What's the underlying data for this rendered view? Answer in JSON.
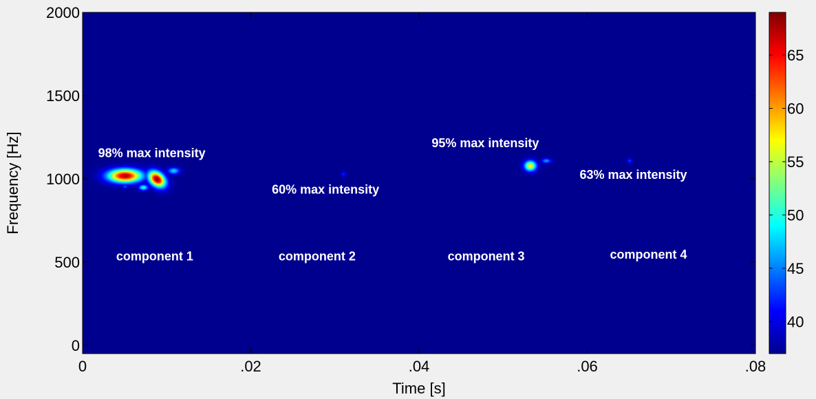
{
  "chart_data": {
    "type": "heatmap",
    "title": "",
    "xlabel": "Time [s]",
    "ylabel": "Frequency [Hz]",
    "xlim": [
      0,
      0.08
    ],
    "ylim": [
      -50,
      2000
    ],
    "x_ticks": [
      {
        "value": 0,
        "label": "0"
      },
      {
        "value": 0.02,
        "label": ".02"
      },
      {
        "value": 0.04,
        "label": ".04"
      },
      {
        "value": 0.06,
        "label": ".06"
      },
      {
        "value": 0.08,
        "label": ".08"
      }
    ],
    "y_ticks": [
      {
        "value": 0,
        "label": "0"
      },
      {
        "value": 500,
        "label": "500"
      },
      {
        "value": 1000,
        "label": "1000"
      },
      {
        "value": 1500,
        "label": "1500"
      },
      {
        "value": 2000,
        "label": "2000"
      }
    ],
    "colorbar": {
      "range": [
        37,
        69
      ],
      "ticks": [
        {
          "value": 40,
          "label": "40"
        },
        {
          "value": 45,
          "label": "45"
        },
        {
          "value": 50,
          "label": "50"
        },
        {
          "value": 55,
          "label": "55"
        },
        {
          "value": 60,
          "label": "60"
        },
        {
          "value": 65,
          "label": "65"
        }
      ],
      "colormap": "jet"
    },
    "background_value": 37,
    "blobs": [
      {
        "x": 0.0088,
        "y": 1000,
        "sx": 0.0008,
        "sy": 28,
        "peak": 68.5,
        "angle_deg": -40
      },
      {
        "x": 0.0072,
        "y": 950,
        "sx": 0.0004,
        "sy": 12,
        "peak": 50
      },
      {
        "x": 0.0108,
        "y": 1050,
        "sx": 0.0005,
        "sy": 14,
        "peak": 48
      },
      {
        "x": 0.005,
        "y": 955,
        "sx": 0.0002,
        "sy": 8,
        "peak": 44
      },
      {
        "x": 0.005,
        "y": 1020,
        "sx": 0.0014,
        "sy": 28,
        "peak": 67.5
      },
      {
        "x": 0.0532,
        "y": 1080,
        "sx": 0.0005,
        "sy": 22,
        "peak": 57
      },
      {
        "x": 0.0551,
        "y": 1110,
        "sx": 0.0004,
        "sy": 10,
        "peak": 46
      },
      {
        "x": 0.031,
        "y": 1030,
        "sx": 0.0002,
        "sy": 10,
        "peak": 42
      },
      {
        "x": 0.065,
        "y": 1110,
        "sx": 0.0002,
        "sy": 10,
        "peak": 43
      }
    ],
    "annotations": [
      {
        "text": "98% max intensity",
        "x": 0.00185,
        "y": 1130
      },
      {
        "text": "60% max intensity",
        "x": 0.0225,
        "y": 910
      },
      {
        "text": "95% max intensity",
        "x": 0.0415,
        "y": 1190
      },
      {
        "text": "63% max intensity",
        "x": 0.0591,
        "y": 1000
      },
      {
        "text": "component 1",
        "x": 0.004,
        "y": 510
      },
      {
        "text": "component 2",
        "x": 0.0233,
        "y": 510
      },
      {
        "text": "component 3",
        "x": 0.0434,
        "y": 510
      },
      {
        "text": "component 4",
        "x": 0.0627,
        "y": 520
      }
    ]
  }
}
